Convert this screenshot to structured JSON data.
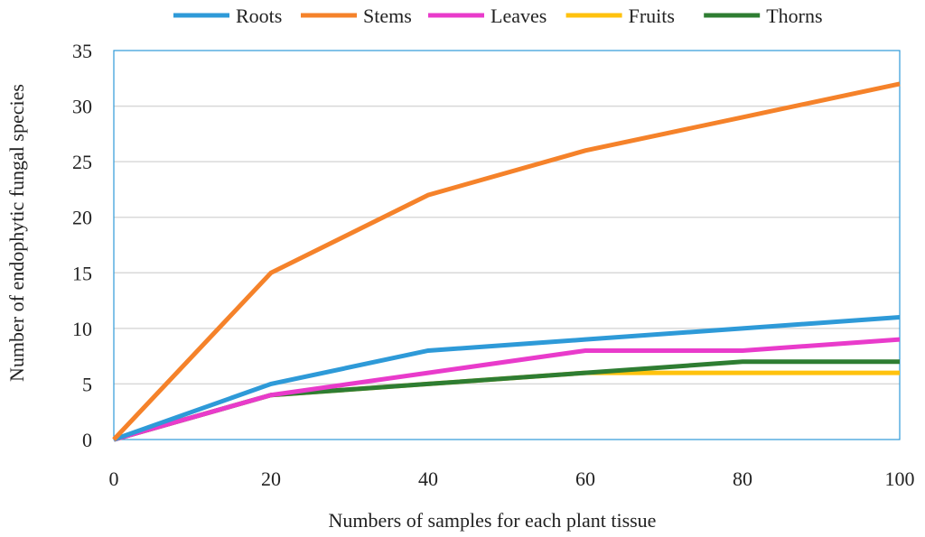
{
  "chart_data": {
    "type": "line",
    "title": "",
    "xlabel": "Numbers of samples for each plant tissue",
    "ylabel": "Number of endophytic fungal species",
    "x": [
      0,
      20,
      40,
      60,
      80,
      100
    ],
    "xlim": [
      0,
      100
    ],
    "ylim": [
      0,
      35
    ],
    "xticks": [
      0,
      20,
      40,
      60,
      80,
      100
    ],
    "yticks": [
      0,
      5,
      10,
      15,
      20,
      25,
      30,
      35
    ],
    "grid": "horizontal",
    "legend_position": "top",
    "series": [
      {
        "name": "Roots",
        "color": "#2E9AD8",
        "values": [
          0,
          5,
          8,
          9,
          10,
          11
        ]
      },
      {
        "name": "Stems",
        "color": "#F5822A",
        "values": [
          0,
          15,
          22,
          26,
          29,
          32
        ]
      },
      {
        "name": "Leaves",
        "color": "#E93BCB",
        "values": [
          0,
          4,
          6,
          8,
          8,
          9
        ]
      },
      {
        "name": "Fruits",
        "color": "#FFC20E",
        "values": [
          0,
          4,
          5,
          6,
          6,
          6
        ]
      },
      {
        "name": "Thorns",
        "color": "#2E7D32",
        "values": [
          0,
          4,
          5,
          6,
          7,
          7
        ]
      }
    ],
    "colors": {
      "plot_border": "#2E9AD8",
      "gridline": "#d9d9d9"
    }
  }
}
